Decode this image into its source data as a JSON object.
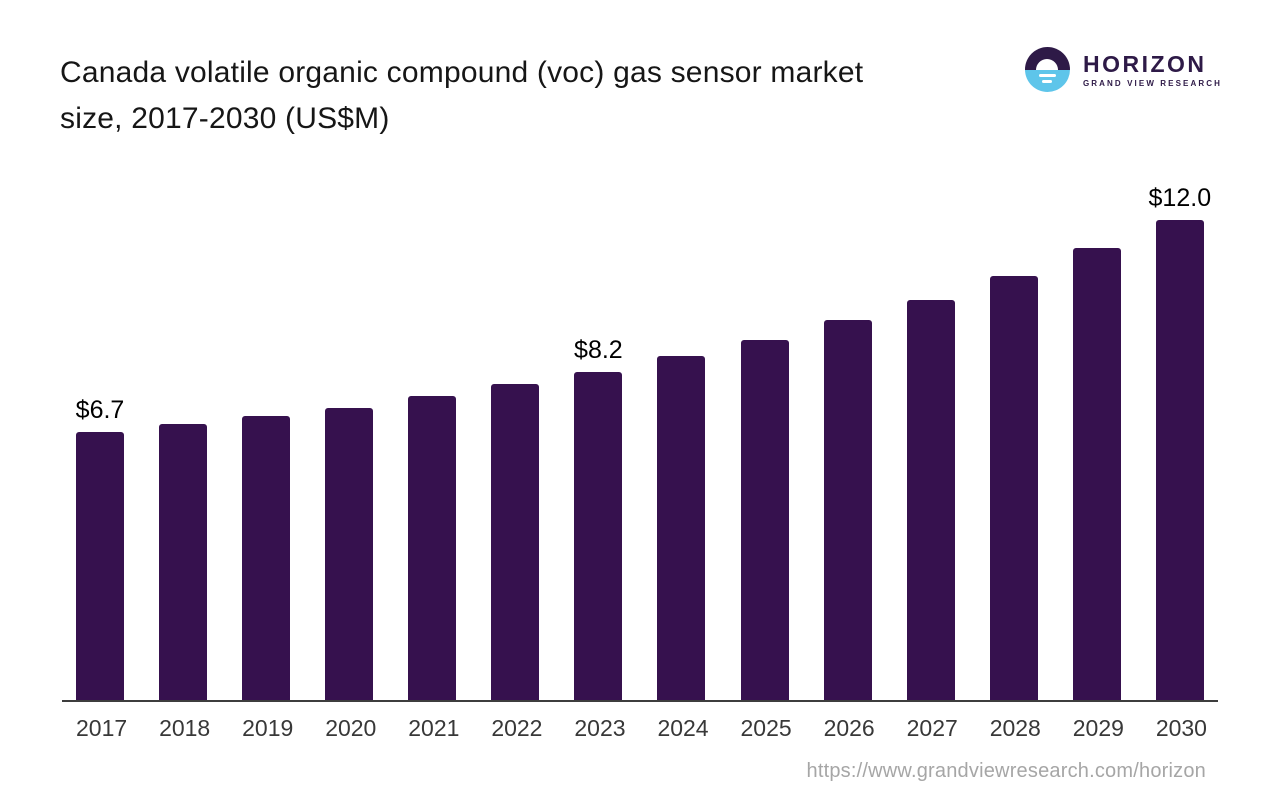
{
  "header": {
    "title_line1": "Canada volatile organic compound (voc) gas sensor market",
    "title_line2": "size, 2017-2030 (US$M)"
  },
  "logo": {
    "name": "HORIZON",
    "subtitle": "GRAND VIEW RESEARCH",
    "colors": {
      "dark": "#2e1a47",
      "light": "#5ec5ea"
    }
  },
  "footer": {
    "url": "https://www.grandviewresearch.com/horizon"
  },
  "chart_data": {
    "type": "bar",
    "title": "Canada volatile organic compound (voc) gas sensor market size, 2017-2030 (US$M)",
    "categories": [
      "2017",
      "2018",
      "2019",
      "2020",
      "2021",
      "2022",
      "2023",
      "2024",
      "2025",
      "2026",
      "2027",
      "2028",
      "2029",
      "2030"
    ],
    "values": [
      6.7,
      6.9,
      7.1,
      7.3,
      7.6,
      7.9,
      8.2,
      8.6,
      9.0,
      9.5,
      10.0,
      10.6,
      11.3,
      12.0
    ],
    "point_labels": [
      "$6.7",
      "",
      "",
      "",
      "",
      "",
      "$8.2",
      "",
      "",
      "",
      "",
      "",
      "",
      "$12.0"
    ],
    "xlabel": "",
    "ylabel": "",
    "ylim": [
      0,
      12
    ],
    "unit": "US$M",
    "bar_color": "#36114e",
    "axis_line_color": "#3d3d3d",
    "grid": false,
    "legend": false
  }
}
